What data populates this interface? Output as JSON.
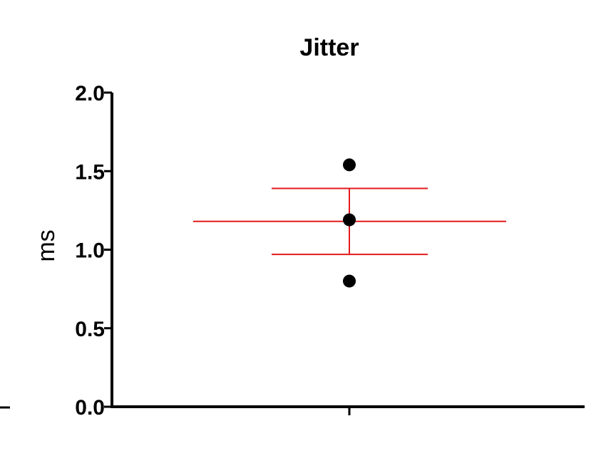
{
  "chart_data": {
    "type": "scatter",
    "title": "Jitter",
    "xlabel": "",
    "ylabel": "ms",
    "ylim": [
      0.0,
      2.0
    ],
    "yticks": [
      {
        "value": 0.0,
        "label": "0.0"
      },
      {
        "value": 0.5,
        "label": "0.5"
      },
      {
        "value": 1.0,
        "label": "1.0"
      },
      {
        "value": 1.5,
        "label": "1.5"
      },
      {
        "value": 2.0,
        "label": "2.0"
      }
    ],
    "categories": [
      ""
    ],
    "points": [
      {
        "category": 0,
        "y": 1.54
      },
      {
        "category": 0,
        "y": 1.19
      },
      {
        "category": 0,
        "y": 0.8
      }
    ],
    "summary": {
      "mean": 1.18,
      "upper": 1.39,
      "lower": 0.97
    },
    "grid": false,
    "legend": "none",
    "colors": {
      "points": "#000000",
      "error_bars": "#e31a1c",
      "axes": "#000000"
    }
  }
}
